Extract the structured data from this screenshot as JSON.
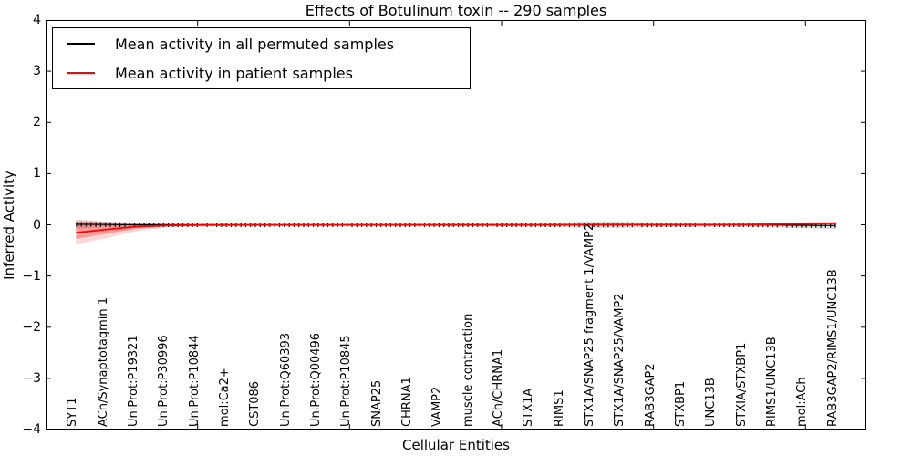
{
  "chart_data": {
    "type": "line",
    "title": "Effects of Botulinum toxin -- 290 samples",
    "xlabel": "Cellular Entities",
    "ylabel": "Inferred Activity",
    "ylim": [
      -4,
      4
    ],
    "yticks": [
      4,
      3,
      2,
      1,
      0,
      -1,
      -2,
      -3,
      -4
    ],
    "xlim": [
      0,
      27
    ],
    "axis_xticks": [
      5,
      10,
      15,
      20,
      25
    ],
    "grid": false,
    "legend_position": "upper left",
    "categories": [
      "SYT1",
      "ACh/Synaptotagmin 1",
      "UniProt:P19321",
      "UniProt:P30996",
      "UniProt:P10844",
      "mol:Ca2+",
      "CST086",
      "UniProt:Q60393",
      "UniProt:Q00496",
      "UniProt:P10845",
      "SNAP25",
      "CHRNA1",
      "VAMP2",
      "muscle contraction",
      "ACh/CHRNA1",
      "STX1A",
      "RIMS1",
      "STX1A/SNAP25 fragment 1/VAMP2",
      "STX1A/SNAP25/VAMP2",
      "RAB3GAP2",
      "STXBP1",
      "UNC13B",
      "STXIA/STXBP1",
      "RIMS1/UNC13B",
      "mol:ACh",
      "RAB3GAP2/RIMS1/UNC13B"
    ],
    "series": [
      {
        "name": "Mean activity in all permuted samples",
        "color": "#000000",
        "marker": "dense-vertical-ticks",
        "values": [
          0.01,
          0.005,
          0,
          0,
          0,
          0,
          0,
          0,
          0,
          0,
          0,
          0,
          0,
          0,
          0,
          0,
          0,
          0,
          0,
          0,
          0,
          0,
          0,
          -0.005,
          -0.01,
          -0.015
        ],
        "band_upper": [
          0.09,
          0.055,
          0.028,
          0.022,
          0.02,
          0.02,
          0.02,
          0.02,
          0.02,
          0.02,
          0.02,
          0.022,
          0.025,
          0.03,
          0.03,
          0.028,
          0.05,
          0.07,
          0.062,
          0.05,
          0.042,
          0.04,
          0.04,
          0.045,
          0.05,
          0.053
        ],
        "band_lower": [
          -0.07,
          -0.045,
          -0.028,
          -0.022,
          -0.02,
          -0.02,
          -0.02,
          -0.02,
          -0.02,
          -0.02,
          -0.02,
          -0.022,
          -0.025,
          -0.03,
          -0.03,
          -0.028,
          -0.05,
          -0.07,
          -0.062,
          -0.05,
          -0.042,
          -0.04,
          -0.04,
          -0.055,
          -0.07,
          -0.083
        ],
        "band_color": "rgba(0,0,0,0.13)"
      },
      {
        "name": "Mean activity in patient samples",
        "color": "#ff0000",
        "marker": "none",
        "values": [
          -0.155,
          -0.09,
          -0.035,
          -0.012,
          -0.005,
          -0.003,
          -0.002,
          -0.002,
          -0.002,
          -0.002,
          -0.002,
          -0.002,
          -0.002,
          -0.002,
          -0.002,
          -0.002,
          0,
          0.004,
          0.004,
          0.002,
          0.002,
          0.002,
          0.004,
          0.01,
          0.018,
          0.032
        ],
        "band_outer_upper": [
          0.1,
          0.065,
          0.035,
          0.022,
          0.018,
          0.016,
          0.015,
          0.015,
          0.015,
          0.015,
          0.015,
          0.015,
          0.015,
          0.015,
          0.015,
          0.015,
          0.016,
          0.02,
          0.02,
          0.018,
          0.016,
          0.016,
          0.018,
          0.025,
          0.035,
          0.05
        ],
        "band_outer_lower": [
          -0.38,
          -0.26,
          -0.12,
          -0.05,
          -0.028,
          -0.022,
          -0.02,
          -0.02,
          -0.02,
          -0.02,
          -0.02,
          -0.02,
          -0.02,
          -0.02,
          -0.02,
          -0.02,
          -0.018,
          -0.016,
          -0.015,
          -0.015,
          -0.014,
          -0.014,
          -0.012,
          -0.01,
          -0.005,
          0.01
        ],
        "band_outer_color": "rgba(255,0,0,0.16)",
        "band_inner_upper": [
          0.04,
          0.026,
          0.015,
          0.008,
          0.006,
          0.005,
          0.005,
          0.005,
          0.005,
          0.005,
          0.005,
          0.005,
          0.005,
          0.005,
          0.005,
          0.005,
          0.006,
          0.01,
          0.01,
          0.008,
          0.008,
          0.008,
          0.01,
          0.015,
          0.025,
          0.042
        ],
        "band_inner_lower": [
          -0.27,
          -0.175,
          -0.075,
          -0.028,
          -0.014,
          -0.011,
          -0.01,
          -0.01,
          -0.01,
          -0.01,
          -0.01,
          -0.01,
          -0.01,
          -0.01,
          -0.01,
          -0.01,
          -0.008,
          -0.005,
          -0.004,
          -0.004,
          -0.004,
          -0.004,
          -0.002,
          0.002,
          0.01,
          0.022
        ],
        "band_inner_color": "rgba(255,0,0,0.28)"
      }
    ]
  }
}
